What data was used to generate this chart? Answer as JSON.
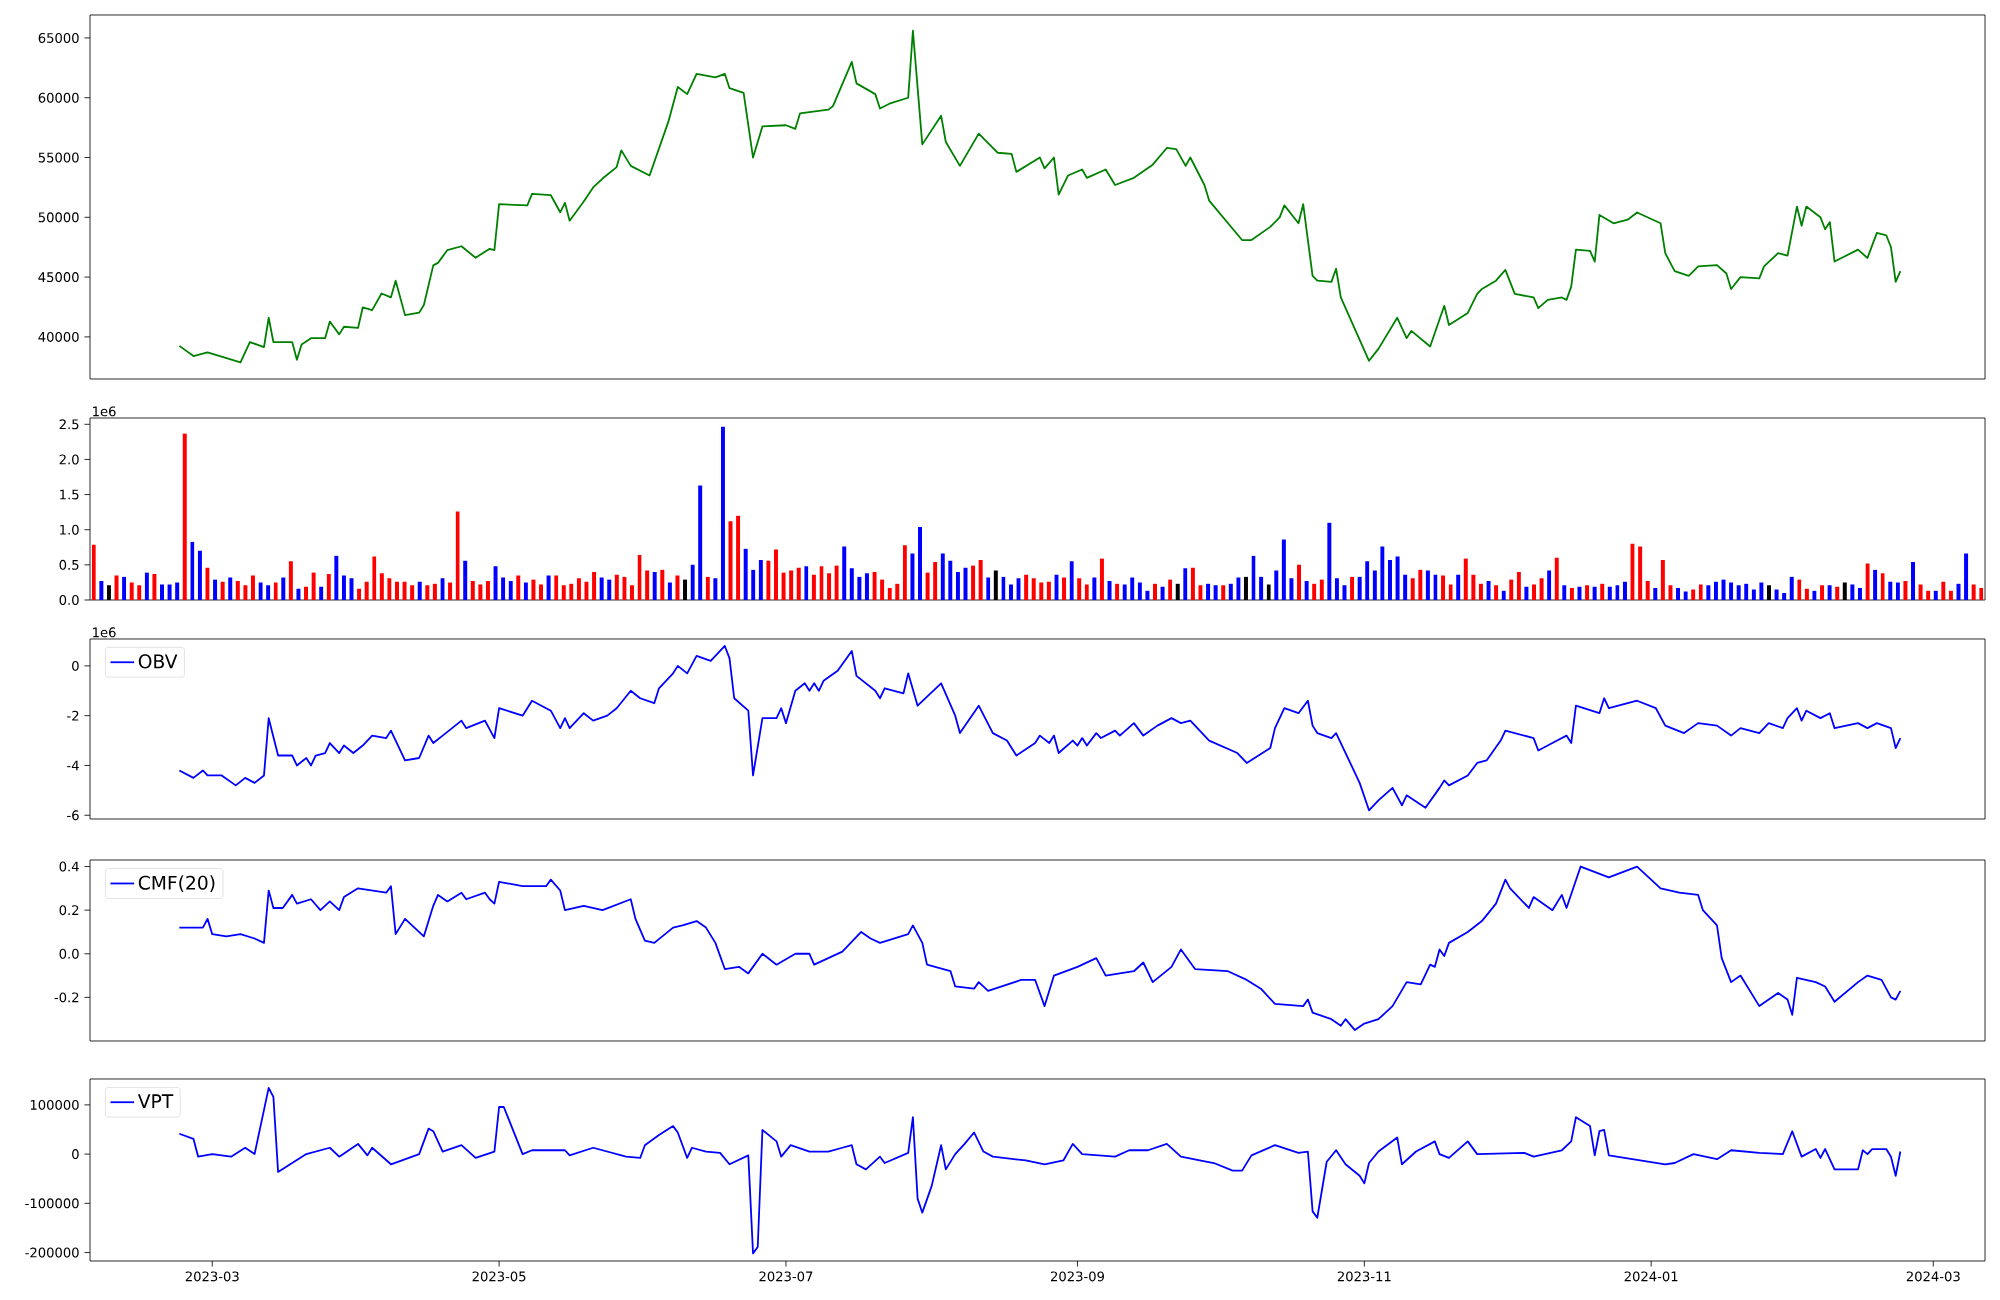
{
  "chart_data": [
    {
      "type": "line",
      "xlim": [
        "2023-02-03",
        "2024-03-12"
      ],
      "ylim": [
        36480,
        66920
      ],
      "yticks": [
        40000,
        45000,
        50000,
        55000,
        60000,
        65000
      ],
      "tick_labels": "y",
      "x": [
        "2023-02-22",
        "2023-02-25",
        "2023-02-28",
        "2023-03-07",
        "2023-03-09",
        "2023-03-12",
        "2023-03-13",
        "2023-03-14",
        "2023-03-18",
        "2023-03-19",
        "2023-03-20",
        "2023-03-22",
        "2023-03-25",
        "2023-03-26",
        "2023-03-28",
        "2023-03-29",
        "2023-04-01",
        "2023-04-02",
        "2023-04-04",
        "2023-04-06",
        "2023-04-08",
        "2023-04-09",
        "2023-04-11",
        "2023-04-14",
        "2023-04-15",
        "2023-04-17",
        "2023-04-18",
        "2023-04-20",
        "2023-04-23",
        "2023-04-26",
        "2023-04-29",
        "2023-04-30",
        "2023-05-01",
        "2023-05-07",
        "2023-05-08",
        "2023-05-12",
        "2023-05-14",
        "2023-05-15",
        "2023-05-16",
        "2023-05-19",
        "2023-05-21",
        "2023-05-23",
        "2023-05-26",
        "2023-05-27",
        "2023-05-29",
        "2023-06-02",
        "2023-06-06",
        "2023-06-08",
        "2023-06-10",
        "2023-06-12",
        "2023-06-16",
        "2023-06-18",
        "2023-06-19",
        "2023-06-22",
        "2023-06-24",
        "2023-06-26",
        "2023-07-01",
        "2023-07-03",
        "2023-07-04",
        "2023-07-10",
        "2023-07-11",
        "2023-07-15",
        "2023-07-16",
        "2023-07-20",
        "2023-07-21",
        "2023-07-23",
        "2023-07-27",
        "2023-07-28",
        "2023-07-30",
        "2023-08-03",
        "2023-08-04",
        "2023-08-07",
        "2023-08-11",
        "2023-08-15",
        "2023-08-18",
        "2023-08-19",
        "2023-08-24",
        "2023-08-25",
        "2023-08-27",
        "2023-08-28",
        "2023-08-30",
        "2023-09-02",
        "2023-09-03",
        "2023-09-07",
        "2023-09-09",
        "2023-09-13",
        "2023-09-17",
        "2023-09-20",
        "2023-09-22",
        "2023-09-24",
        "2023-09-25",
        "2023-09-28",
        "2023-09-29",
        "2023-10-06",
        "2023-10-08",
        "2023-10-12",
        "2023-10-14",
        "2023-10-15",
        "2023-10-18",
        "2023-10-19",
        "2023-10-21",
        "2023-10-22",
        "2023-10-25",
        "2023-10-26",
        "2023-10-27",
        "2023-11-02",
        "2023-11-04",
        "2023-11-08",
        "2023-11-10",
        "2023-11-11",
        "2023-11-15",
        "2023-11-18",
        "2023-11-19",
        "2023-11-23",
        "2023-11-25",
        "2023-11-26",
        "2023-11-29",
        "2023-12-01",
        "2023-12-03",
        "2023-12-07",
        "2023-12-08",
        "2023-12-10",
        "2023-12-13",
        "2023-12-14",
        "2023-12-15",
        "2023-12-16",
        "2023-12-19",
        "2023-12-20",
        "2023-12-21",
        "2023-12-24",
        "2023-12-27",
        "2023-12-29",
        "2024-01-03",
        "2024-01-04",
        "2024-01-06",
        "2024-01-09",
        "2024-01-11",
        "2024-01-15",
        "2024-01-17",
        "2024-01-18",
        "2024-01-20",
        "2024-01-24",
        "2024-01-25",
        "2024-01-28",
        "2024-01-30",
        "2024-02-01",
        "2024-02-02",
        "2024-02-03",
        "2024-02-06",
        "2024-02-07",
        "2024-02-08",
        "2024-02-09",
        "2024-02-14",
        "2024-02-16",
        "2024-02-18",
        "2024-02-20",
        "2024-02-21",
        "2024-02-22",
        "2024-02-23"
      ],
      "series": [
        {
          "color": "#008000",
          "values": [
            39250,
            38400,
            38700,
            37860,
            39570,
            39150,
            41600,
            39570,
            39570,
            38080,
            39360,
            39890,
            39890,
            41280,
            40210,
            40850,
            40750,
            42460,
            42240,
            43630,
            43310,
            44700,
            41820,
            42030,
            42670,
            45980,
            46190,
            47260,
            47580,
            46620,
            47370,
            47260,
            51100,
            51000,
            51960,
            51850,
            50420,
            51210,
            49720,
            51320,
            52500,
            53240,
            54200,
            55600,
            54300,
            53500,
            58000,
            60900,
            60300,
            62000,
            61700,
            62000,
            60800,
            60400,
            55000,
            57600,
            57700,
            57400,
            58700,
            59000,
            59300,
            63000,
            61200,
            60300,
            59100,
            59500,
            60000,
            65600,
            56100,
            58500,
            56300,
            54300,
            57000,
            55400,
            55300,
            53800,
            55000,
            54100,
            55000,
            51900,
            53500,
            54000,
            53300,
            54000,
            52700,
            53300,
            54400,
            55800,
            55700,
            54300,
            55000,
            52700,
            51400,
            48100,
            48100,
            49200,
            50000,
            51000,
            49500,
            51100,
            45100,
            44700,
            44600,
            45700,
            43300,
            38000,
            39000,
            41600,
            39900,
            40500,
            39200,
            42600,
            41000,
            42000,
            43600,
            44000,
            44700,
            45600,
            43600,
            43300,
            42400,
            43100,
            43300,
            43100,
            44200,
            47300,
            47200,
            46300,
            50200,
            49500,
            49800,
            50400,
            49500,
            47000,
            45500,
            45100,
            45900,
            46000,
            45300,
            44000,
            45000,
            44900,
            45900,
            47000,
            46800,
            50900,
            49300,
            50900,
            50000,
            49000,
            49600,
            46300,
            47300,
            46600,
            48700,
            48500,
            47500,
            44600,
            45500
          ]
        }
      ]
    },
    {
      "type": "bar",
      "ylim": [
        0,
        2.59
      ],
      "tick_labels": "y",
      "annotations": [
        "1e6"
      ],
      "yticks": [
        {
          "value": 0,
          "label": "0.0"
        },
        {
          "value": 0.5,
          "label": "0.5"
        },
        {
          "value": 1,
          "label": "1.0"
        },
        {
          "value": 1.5,
          "label": "1.5"
        },
        {
          "value": 2,
          "label": "2.0"
        },
        {
          "value": 2.5,
          "label": "2.5"
        }
      ],
      "categories": [
        null,
        null,
        null,
        null,
        null,
        null,
        null,
        null,
        null,
        null,
        null,
        null,
        null,
        null,
        null,
        null,
        null,
        null,
        null,
        null,
        null,
        null,
        null,
        null,
        null,
        null,
        null,
        null,
        null,
        null,
        null,
        null,
        null,
        null,
        null,
        null,
        null,
        null,
        null,
        null,
        null,
        null,
        null,
        null,
        null,
        null,
        null,
        null,
        null,
        null,
        null,
        null,
        null,
        null,
        null,
        null,
        null,
        null,
        null,
        null,
        null,
        null,
        null,
        null,
        null,
        null,
        null,
        null,
        null,
        null,
        null,
        null,
        null,
        null,
        null,
        null,
        null,
        null,
        null,
        null,
        null,
        null,
        null,
        null,
        null,
        null,
        null,
        null,
        null,
        null,
        null,
        null,
        null,
        null,
        null,
        null,
        null,
        null,
        null,
        null,
        null,
        null,
        null,
        null,
        null,
        null,
        null,
        null,
        null,
        null,
        null,
        null,
        null,
        null,
        null,
        null,
        null,
        null,
        null,
        null,
        null,
        null,
        null,
        null,
        null,
        null,
        null,
        null,
        null,
        null,
        null,
        null,
        null,
        null,
        null,
        null,
        null,
        null,
        null,
        null,
        null,
        null,
        null,
        null,
        null,
        null,
        null,
        null,
        null,
        null,
        null,
        null,
        null,
        null,
        null,
        null,
        null,
        null,
        null,
        null,
        null,
        null,
        null,
        null,
        null,
        null,
        null,
        null,
        null,
        null,
        null,
        null,
        null,
        null,
        null,
        null,
        null,
        null,
        null,
        null,
        null,
        null,
        null,
        null,
        null,
        null,
        null,
        null,
        null,
        null,
        null,
        null,
        null,
        null,
        null,
        null,
        null,
        null,
        null,
        null,
        null,
        null,
        null,
        null,
        null,
        null,
        null,
        null,
        null,
        null,
        null,
        null,
        null,
        null,
        null,
        null,
        null,
        null,
        null,
        null,
        null,
        null,
        null,
        null,
        null,
        null,
        null,
        null,
        null,
        null,
        null,
        null,
        null,
        null,
        null,
        null,
        null,
        null,
        null,
        null,
        null,
        null,
        null,
        null,
        null,
        null,
        null,
        null,
        null,
        null
      ],
      "values": [
        0.79,
        0.27,
        0.21,
        0.35,
        0.33,
        0.25,
        0.21,
        0.39,
        0.37,
        0.22,
        0.22,
        0.25,
        2.37,
        0.83,
        0.7,
        0.46,
        0.29,
        0.26,
        0.32,
        0.27,
        0.21,
        0.35,
        0.25,
        0.21,
        0.25,
        0.32,
        0.55,
        0.16,
        0.19,
        0.39,
        0.19,
        0.37,
        0.63,
        0.35,
        0.31,
        0.16,
        0.26,
        0.62,
        0.38,
        0.31,
        0.26,
        0.26,
        0.21,
        0.26,
        0.21,
        0.23,
        0.31,
        0.25,
        1.26,
        0.56,
        0.27,
        0.22,
        0.27,
        0.48,
        0.32,
        0.27,
        0.35,
        0.25,
        0.29,
        0.22,
        0.35,
        0.35,
        0.21,
        0.23,
        0.31,
        0.26,
        0.4,
        0.32,
        0.29,
        0.36,
        0.33,
        0.21,
        0.64,
        0.42,
        0.4,
        0.43,
        0.25,
        0.35,
        0.29,
        0.5,
        1.63,
        0.33,
        0.31,
        2.47,
        1.12,
        1.2,
        0.73,
        0.43,
        0.57,
        0.56,
        0.72,
        0.39,
        0.42,
        0.46,
        0.48,
        0.36,
        0.48,
        0.38,
        0.49,
        0.76,
        0.45,
        0.33,
        0.38,
        0.4,
        0.29,
        0.17,
        0.23,
        0.78,
        0.66,
        1.04,
        0.39,
        0.54,
        0.66,
        0.56,
        0.4,
        0.46,
        0.49,
        0.57,
        0.32,
        0.42,
        0.33,
        0.22,
        0.31,
        0.36,
        0.31,
        0.25,
        0.26,
        0.36,
        0.32,
        0.55,
        0.31,
        0.22,
        0.32,
        0.59,
        0.27,
        0.23,
        0.22,
        0.32,
        0.25,
        0.13,
        0.23,
        0.19,
        0.29,
        0.23,
        0.45,
        0.46,
        0.21,
        0.23,
        0.21,
        0.21,
        0.23,
        0.32,
        0.33,
        0.63,
        0.33,
        0.22,
        0.42,
        0.86,
        0.31,
        0.5,
        0.27,
        0.23,
        0.29,
        1.1,
        0.31,
        0.21,
        0.33,
        0.33,
        0.55,
        0.42,
        0.76,
        0.57,
        0.62,
        0.36,
        0.31,
        0.43,
        0.42,
        0.36,
        0.35,
        0.22,
        0.36,
        0.59,
        0.36,
        0.23,
        0.27,
        0.21,
        0.13,
        0.29,
        0.4,
        0.19,
        0.22,
        0.31,
        0.42,
        0.6,
        0.21,
        0.17,
        0.19,
        0.21,
        0.19,
        0.23,
        0.19,
        0.21,
        0.26,
        0.8,
        0.76,
        0.27,
        0.17,
        0.57,
        0.21,
        0.17,
        0.12,
        0.15,
        0.22,
        0.21,
        0.26,
        0.29,
        0.25,
        0.21,
        0.23,
        0.15,
        0.25,
        0.21,
        0.15,
        0.1,
        0.33,
        0.29,
        0.16,
        0.13,
        0.21,
        0.21,
        0.19,
        0.25,
        0.22,
        0.17,
        0.52,
        0.43,
        0.38,
        0.26,
        0.25,
        0.27,
        0.54,
        0.22,
        0.13,
        0.13,
        0.26,
        0.13,
        0.23,
        0.66,
        0.22,
        0.17
      ],
      "colors": [
        "#ff0000",
        "#0000ff",
        "#000000",
        "#ff0000",
        "#0000ff",
        "#ff0000",
        "#ff0000",
        "#0000ff",
        "#ff0000",
        "#0000ff",
        "#0000ff",
        "#0000ff",
        "#ff0000",
        "#0000ff",
        "#0000ff",
        "#ff0000",
        "#0000ff",
        "#ff0000",
        "#0000ff",
        "#ff0000",
        "#ff0000",
        "#ff0000",
        "#0000ff",
        "#0000ff",
        "#ff0000",
        "#0000ff",
        "#ff0000",
        "#0000ff",
        "#ff0000",
        "#ff0000",
        "#0000ff",
        "#ff0000",
        "#0000ff",
        "#0000ff",
        "#0000ff",
        "#ff0000",
        "#ff0000",
        "#ff0000",
        "#ff0000",
        "#ff0000",
        "#ff0000",
        "#ff0000",
        "#ff0000",
        "#0000ff",
        "#ff0000",
        "#ff0000",
        "#0000ff",
        "#ff0000",
        "#ff0000",
        "#0000ff",
        "#ff0000",
        "#ff0000",
        "#ff0000",
        "#0000ff",
        "#0000ff",
        "#0000ff",
        "#ff0000",
        "#0000ff",
        "#ff0000",
        "#ff0000",
        "#0000ff",
        "#ff0000",
        "#ff0000",
        "#ff0000",
        "#ff0000",
        "#ff0000",
        "#ff0000",
        "#0000ff",
        "#0000ff",
        "#ff0000",
        "#ff0000",
        "#ff0000",
        "#ff0000",
        "#ff0000",
        "#0000ff",
        "#ff0000",
        "#0000ff",
        "#ff0000",
        "#000000",
        "#0000ff",
        "#0000ff",
        "#ff0000",
        "#0000ff",
        "#0000ff",
        "#ff0000",
        "#ff0000",
        "#0000ff",
        "#0000ff",
        "#0000ff",
        "#ff0000",
        "#ff0000",
        "#ff0000",
        "#ff0000",
        "#ff0000",
        "#0000ff",
        "#ff0000",
        "#ff0000",
        "#ff0000",
        "#ff0000",
        "#0000ff",
        "#0000ff",
        "#0000ff",
        "#0000ff",
        "#ff0000",
        "#ff0000",
        "#ff0000",
        "#ff0000",
        "#ff0000",
        "#0000ff",
        "#0000ff",
        "#ff0000",
        "#ff0000",
        "#0000ff",
        "#0000ff",
        "#0000ff",
        "#0000ff",
        "#ff0000",
        "#ff0000",
        "#0000ff",
        "#000000",
        "#0000ff",
        "#0000ff",
        "#0000ff",
        "#ff0000",
        "#ff0000",
        "#ff0000",
        "#ff0000",
        "#0000ff",
        "#ff0000",
        "#0000ff",
        "#ff0000",
        "#ff0000",
        "#0000ff",
        "#ff0000",
        "#0000ff",
        "#ff0000",
        "#0000ff",
        "#0000ff",
        "#0000ff",
        "#0000ff",
        "#ff0000",
        "#0000ff",
        "#ff0000",
        "#000000",
        "#0000ff",
        "#ff0000",
        "#ff0000",
        "#0000ff",
        "#0000ff",
        "#ff0000",
        "#0000ff",
        "#0000ff",
        "#000000",
        "#0000ff",
        "#0000ff",
        "#000000",
        "#0000ff",
        "#0000ff",
        "#0000ff",
        "#ff0000",
        "#0000ff",
        "#ff0000",
        "#ff0000",
        "#0000ff",
        "#0000ff",
        "#0000ff",
        "#ff0000",
        "#0000ff",
        "#0000ff",
        "#0000ff",
        "#0000ff",
        "#0000ff",
        "#0000ff",
        "#0000ff",
        "#ff0000",
        "#ff0000",
        "#0000ff",
        "#0000ff",
        "#ff0000",
        "#ff0000",
        "#0000ff",
        "#ff0000",
        "#ff0000",
        "#ff0000",
        "#0000ff",
        "#ff0000",
        "#0000ff",
        "#ff0000",
        "#ff0000",
        "#0000ff",
        "#ff0000",
        "#ff0000",
        "#0000ff",
        "#ff0000",
        "#0000ff",
        "#ff0000",
        "#0000ff",
        "#ff0000",
        "#0000ff",
        "#ff0000",
        "#0000ff",
        "#0000ff",
        "#0000ff",
        "#ff0000",
        "#ff0000",
        "#ff0000",
        "#0000ff",
        "#ff0000",
        "#ff0000",
        "#0000ff",
        "#0000ff",
        "#ff0000",
        "#ff0000",
        "#0000ff",
        "#0000ff",
        "#0000ff",
        "#0000ff",
        "#0000ff",
        "#0000ff",
        "#0000ff",
        "#0000ff",
        "#000000",
        "#0000ff",
        "#0000ff",
        "#0000ff",
        "#ff0000",
        "#ff0000",
        "#0000ff",
        "#ff0000",
        "#0000ff",
        "#ff0000",
        "#000000",
        "#0000ff",
        "#0000ff",
        "#ff0000",
        "#0000ff",
        "#ff0000",
        "#0000ff",
        "#0000ff",
        "#ff0000",
        "#0000ff",
        "#ff0000",
        "#ff0000",
        "#0000ff",
        "#ff0000",
        "#ff0000",
        "#0000ff",
        "#0000ff",
        "#ff0000",
        "#ff0000"
      ]
    },
    {
      "type": "line",
      "xlim": [
        "2023-02-03",
        "2024-03-12"
      ],
      "ylim": [
        -6.15,
        1.08
      ],
      "yticks": [
        -6,
        -4,
        -2,
        0
      ],
      "tick_labels": "y",
      "annotations": [
        "1e6"
      ],
      "legend": "top left",
      "x": [
        "2023-02-22",
        "2023-02-25",
        "2023-02-27",
        "2023-02-28",
        "2023-03-03",
        "2023-03-06",
        "2023-03-08",
        "2023-03-10",
        "2023-03-12",
        "2023-03-13",
        "2023-03-15",
        "2023-03-18",
        "2023-03-19",
        "2023-03-21",
        "2023-03-22",
        "2023-03-23",
        "2023-03-25",
        "2023-03-26",
        "2023-03-28",
        "2023-03-29",
        "2023-03-31",
        "2023-04-02",
        "2023-04-04",
        "2023-04-07",
        "2023-04-08",
        "2023-04-11",
        "2023-04-14",
        "2023-04-16",
        "2023-04-17",
        "2023-04-19",
        "2023-04-23",
        "2023-04-24",
        "2023-04-28",
        "2023-04-30",
        "2023-05-01",
        "2023-05-06",
        "2023-05-08",
        "2023-05-12",
        "2023-05-14",
        "2023-05-15",
        "2023-05-16",
        "2023-05-19",
        "2023-05-21",
        "2023-05-24",
        "2023-05-26",
        "2023-05-29",
        "2023-05-31",
        "2023-06-03",
        "2023-06-04",
        "2023-06-07",
        "2023-06-08",
        "2023-06-10",
        "2023-06-12",
        "2023-06-15",
        "2023-06-18",
        "2023-06-19",
        "2023-06-20",
        "2023-06-23",
        "2023-06-24",
        "2023-06-26",
        "2023-06-29",
        "2023-06-30",
        "2023-07-01",
        "2023-07-03",
        "2023-07-05",
        "2023-07-06",
        "2023-07-07",
        "2023-07-08",
        "2023-07-09",
        "2023-07-12",
        "2023-07-15",
        "2023-07-16",
        "2023-07-20",
        "2023-07-21",
        "2023-07-22",
        "2023-07-26",
        "2023-07-27",
        "2023-07-29",
        "2023-08-03",
        "2023-08-06",
        "2023-08-07",
        "2023-08-11",
        "2023-08-14",
        "2023-08-17",
        "2023-08-19",
        "2023-08-23",
        "2023-08-24",
        "2023-08-26",
        "2023-08-27",
        "2023-08-28",
        "2023-08-31",
        "2023-09-01",
        "2023-09-02",
        "2023-09-03",
        "2023-09-05",
        "2023-09-06",
        "2023-09-09",
        "2023-09-10",
        "2023-09-13",
        "2023-09-15",
        "2023-09-18",
        "2023-09-21",
        "2023-09-23",
        "2023-09-25",
        "2023-09-29",
        "2023-10-05",
        "2023-10-07",
        "2023-10-12",
        "2023-10-13",
        "2023-10-15",
        "2023-10-18",
        "2023-10-20",
        "2023-10-21",
        "2023-10-22",
        "2023-10-25",
        "2023-10-26",
        "2023-10-29",
        "2023-10-31",
        "2023-11-02",
        "2023-11-04",
        "2023-11-07",
        "2023-11-09",
        "2023-11-10",
        "2023-11-14",
        "2023-11-17",
        "2023-11-18",
        "2023-11-19",
        "2023-11-23",
        "2023-11-25",
        "2023-11-27",
        "2023-11-30",
        "2023-12-01",
        "2023-12-07",
        "2023-12-08",
        "2023-12-12",
        "2023-12-14",
        "2023-12-15",
        "2023-12-16",
        "2023-12-21",
        "2023-12-22",
        "2023-12-23",
        "2023-12-29",
        "2024-01-02",
        "2024-01-04",
        "2024-01-08",
        "2024-01-11",
        "2024-01-15",
        "2024-01-18",
        "2024-01-20",
        "2024-01-24",
        "2024-01-26",
        "2024-01-29",
        "2024-01-30",
        "2024-02-01",
        "2024-02-02",
        "2024-02-03",
        "2024-02-06",
        "2024-02-08",
        "2024-02-09",
        "2024-02-14",
        "2024-02-16",
        "2024-02-18",
        "2024-02-21",
        "2024-02-22",
        "2024-02-23"
      ],
      "series": [
        {
          "name": "OBV",
          "color": "#0000ff",
          "values": [
            -4.2,
            -4.5,
            -4.2,
            -4.4,
            -4.4,
            -4.8,
            -4.5,
            -4.7,
            -4.4,
            -2.1,
            -3.6,
            -3.6,
            -4.0,
            -3.7,
            -4.0,
            -3.6,
            -3.5,
            -3.1,
            -3.5,
            -3.2,
            -3.5,
            -3.2,
            -2.8,
            -2.9,
            -2.6,
            -3.8,
            -3.7,
            -2.8,
            -3.1,
            -2.8,
            -2.2,
            -2.5,
            -2.2,
            -2.9,
            -1.7,
            -2.0,
            -1.4,
            -1.8,
            -2.5,
            -2.1,
            -2.5,
            -1.9,
            -2.2,
            -2.0,
            -1.7,
            -1.0,
            -1.3,
            -1.5,
            -0.9,
            -0.3,
            0.0,
            -0.3,
            0.4,
            0.2,
            0.8,
            0.3,
            -1.3,
            -1.8,
            -4.4,
            -2.1,
            -2.1,
            -1.7,
            -2.3,
            -1.0,
            -0.7,
            -1.0,
            -0.7,
            -1.0,
            -0.6,
            -0.2,
            0.6,
            -0.4,
            -1.0,
            -1.3,
            -0.9,
            -1.1,
            -0.3,
            -1.6,
            -0.7,
            -2.0,
            -2.7,
            -1.6,
            -2.7,
            -3.0,
            -3.6,
            -3.1,
            -2.8,
            -3.1,
            -2.8,
            -3.5,
            -3.0,
            -3.2,
            -2.9,
            -3.2,
            -2.7,
            -2.9,
            -2.6,
            -2.8,
            -2.3,
            -2.8,
            -2.4,
            -2.1,
            -2.3,
            -2.2,
            -3.0,
            -3.5,
            -3.9,
            -3.3,
            -2.5,
            -1.7,
            -1.9,
            -1.4,
            -2.4,
            -2.7,
            -2.9,
            -2.7,
            -3.9,
            -4.7,
            -5.8,
            -5.4,
            -4.9,
            -5.6,
            -5.2,
            -5.7,
            -4.9,
            -4.6,
            -4.8,
            -4.4,
            -3.9,
            -3.8,
            -3.0,
            -2.6,
            -2.9,
            -3.4,
            -3.0,
            -2.8,
            -3.1,
            -1.6,
            -1.9,
            -1.3,
            -1.7,
            -1.4,
            -1.7,
            -2.4,
            -2.7,
            -2.3,
            -2.4,
            -2.8,
            -2.5,
            -2.7,
            -2.3,
            -2.5,
            -2.1,
            -1.7,
            -2.2,
            -1.8,
            -2.1,
            -1.9,
            -2.5,
            -2.3,
            -2.5,
            -2.3,
            -2.5,
            -3.3,
            -2.9
          ]
        }
      ]
    },
    {
      "type": "line",
      "xlim": [
        "2023-02-03",
        "2024-03-12"
      ],
      "ylim": [
        -0.4,
        0.43
      ],
      "yticks": [
        -0.2,
        {
          "value": 0,
          "label": "0.0"
        },
        0.2,
        0.4
      ],
      "tick_labels": "y",
      "legend": "top left",
      "x": [
        "2023-02-22",
        "2023-02-27",
        "2023-02-28",
        "2023-03-01",
        "2023-03-04",
        "2023-03-07",
        "2023-03-10",
        "2023-03-12",
        "2023-03-13",
        "2023-03-14",
        "2023-03-16",
        "2023-03-18",
        "2023-03-19",
        "2023-03-22",
        "2023-03-24",
        "2023-03-26",
        "2023-03-28",
        "2023-03-29",
        "2023-04-01",
        "2023-04-07",
        "2023-04-08",
        "2023-04-09",
        "2023-04-11",
        "2023-04-15",
        "2023-04-17",
        "2023-04-18",
        "2023-04-20",
        "2023-04-23",
        "2023-04-24",
        "2023-04-28",
        "2023-04-29",
        "2023-04-30",
        "2023-05-01",
        "2023-05-06",
        "2023-05-11",
        "2023-05-12",
        "2023-05-14",
        "2023-05-15",
        "2023-05-19",
        "2023-05-23",
        "2023-05-29",
        "2023-05-30",
        "2023-06-01",
        "2023-06-03",
        "2023-06-07",
        "2023-06-09",
        "2023-06-12",
        "2023-06-14",
        "2023-06-16",
        "2023-06-18",
        "2023-06-21",
        "2023-06-23",
        "2023-06-26",
        "2023-06-29",
        "2023-07-03",
        "2023-07-06",
        "2023-07-07",
        "2023-07-13",
        "2023-07-17",
        "2023-07-19",
        "2023-07-21",
        "2023-07-27",
        "2023-07-28",
        "2023-07-30",
        "2023-07-31",
        "2023-08-05",
        "2023-08-06",
        "2023-08-10",
        "2023-08-11",
        "2023-08-13",
        "2023-08-20",
        "2023-08-23",
        "2023-08-25",
        "2023-08-27",
        "2023-09-01",
        "2023-09-05",
        "2023-09-07",
        "2023-09-13",
        "2023-09-15",
        "2023-09-17",
        "2023-09-21",
        "2023-09-23",
        "2023-09-26",
        "2023-10-03",
        "2023-10-07",
        "2023-10-10",
        "2023-10-13",
        "2023-10-19",
        "2023-10-20",
        "2023-10-21",
        "2023-10-25",
        "2023-10-27",
        "2023-10-28",
        "2023-10-30",
        "2023-11-01",
        "2023-11-04",
        "2023-11-07",
        "2023-11-10",
        "2023-11-13",
        "2023-11-15",
        "2023-11-16",
        "2023-11-17",
        "2023-11-18",
        "2023-11-19",
        "2023-11-23",
        "2023-11-26",
        "2023-11-29",
        "2023-12-01",
        "2023-12-02",
        "2023-12-06",
        "2023-12-07",
        "2023-12-11",
        "2023-12-13",
        "2023-12-14",
        "2023-12-17",
        "2023-12-23",
        "2023-12-29",
        "2024-01-03",
        "2024-01-07",
        "2024-01-11",
        "2024-01-12",
        "2024-01-15",
        "2024-01-16",
        "2024-01-18",
        "2024-01-20",
        "2024-01-24",
        "2024-01-28",
        "2024-01-30",
        "2024-01-31",
        "2024-02-01",
        "2024-02-05",
        "2024-02-07",
        "2024-02-09",
        "2024-02-14",
        "2024-02-16",
        "2024-02-19",
        "2024-02-21",
        "2024-02-22",
        "2024-02-23"
      ],
      "series": [
        {
          "name": "CMF(20)",
          "color": "#0000ff",
          "values": [
            0.12,
            0.12,
            0.16,
            0.09,
            0.08,
            0.09,
            0.07,
            0.05,
            0.29,
            0.21,
            0.21,
            0.27,
            0.23,
            0.25,
            0.2,
            0.24,
            0.2,
            0.26,
            0.3,
            0.28,
            0.31,
            0.09,
            0.16,
            0.08,
            0.22,
            0.27,
            0.24,
            0.28,
            0.25,
            0.28,
            0.25,
            0.23,
            0.33,
            0.31,
            0.31,
            0.34,
            0.29,
            0.2,
            0.22,
            0.2,
            0.25,
            0.16,
            0.06,
            0.05,
            0.12,
            0.13,
            0.15,
            0.12,
            0.05,
            -0.07,
            -0.06,
            -0.09,
            0.0,
            -0.05,
            0.0,
            0.0,
            -0.05,
            0.01,
            0.1,
            0.07,
            0.05,
            0.09,
            0.13,
            0.05,
            -0.05,
            -0.08,
            -0.15,
            -0.16,
            -0.13,
            -0.17,
            -0.12,
            -0.12,
            -0.24,
            -0.1,
            -0.06,
            -0.02,
            -0.1,
            -0.08,
            -0.04,
            -0.13,
            -0.06,
            0.02,
            -0.07,
            -0.08,
            -0.12,
            -0.16,
            -0.23,
            -0.24,
            -0.21,
            -0.27,
            -0.3,
            -0.33,
            -0.3,
            -0.35,
            -0.32,
            -0.3,
            -0.24,
            -0.13,
            -0.14,
            -0.05,
            -0.06,
            0.02,
            -0.01,
            0.05,
            0.1,
            0.15,
            0.23,
            0.34,
            0.3,
            0.21,
            0.26,
            0.2,
            0.27,
            0.21,
            0.4,
            0.35,
            0.4,
            0.3,
            0.28,
            0.27,
            0.2,
            0.13,
            -0.02,
            -0.13,
            -0.1,
            -0.24,
            -0.18,
            -0.21,
            -0.28,
            -0.11,
            -0.13,
            -0.15,
            -0.22,
            -0.13,
            -0.1,
            -0.12,
            -0.2,
            -0.21,
            -0.17
          ]
        }
      ]
    },
    {
      "type": "line",
      "xlim": [
        "2023-02-03",
        "2024-03-12"
      ],
      "ylim": [
        -217200,
        152600
      ],
      "yticks": [
        -200000,
        -100000,
        0,
        100000
      ],
      "legend": "top left",
      "xticks": [
        "2023-03",
        "2023-05",
        "2023-07",
        "2023-09",
        "2023-11",
        "2024-01",
        "2024-03"
      ],
      "x": [
        "2023-02-22",
        "2023-02-25",
        "2023-02-26",
        "2023-03-01",
        "2023-03-05",
        "2023-03-08",
        "2023-03-10",
        "2023-03-13",
        "2023-03-14",
        "2023-03-15",
        "2023-03-21",
        "2023-03-26",
        "2023-03-28",
        "2023-04-01",
        "2023-04-03",
        "2023-04-04",
        "2023-04-08",
        "2023-04-14",
        "2023-04-16",
        "2023-04-17",
        "2023-04-19",
        "2023-04-23",
        "2023-04-26",
        "2023-04-30",
        "2023-05-01",
        "2023-05-02",
        "2023-05-06",
        "2023-05-08",
        "2023-05-15",
        "2023-05-16",
        "2023-05-21",
        "2023-05-28",
        "2023-05-31",
        "2023-06-01",
        "2023-06-04",
        "2023-06-07",
        "2023-06-08",
        "2023-06-10",
        "2023-06-11",
        "2023-06-14",
        "2023-06-17",
        "2023-06-19",
        "2023-06-23",
        "2023-06-24",
        "2023-06-25",
        "2023-06-26",
        "2023-06-29",
        "2023-06-30",
        "2023-07-02",
        "2023-07-06",
        "2023-07-10",
        "2023-07-13",
        "2023-07-15",
        "2023-07-16",
        "2023-07-18",
        "2023-07-21",
        "2023-07-22",
        "2023-07-27",
        "2023-07-28",
        "2023-07-29",
        "2023-07-30",
        "2023-08-01",
        "2023-08-03",
        "2023-08-04",
        "2023-08-06",
        "2023-08-08",
        "2023-08-10",
        "2023-08-12",
        "2023-08-14",
        "2023-08-21",
        "2023-08-25",
        "2023-08-29",
        "2023-08-31",
        "2023-09-02",
        "2023-09-09",
        "2023-09-12",
        "2023-09-16",
        "2023-09-20",
        "2023-09-23",
        "2023-09-27",
        "2023-09-30",
        "2023-10-04",
        "2023-10-06",
        "2023-10-08",
        "2023-10-13",
        "2023-10-18",
        "2023-10-20",
        "2023-10-21",
        "2023-10-22",
        "2023-10-24",
        "2023-10-26",
        "2023-10-28",
        "2023-10-31",
        "2023-11-01",
        "2023-11-02",
        "2023-11-04",
        "2023-11-08",
        "2023-11-09",
        "2023-11-12",
        "2023-11-16",
        "2023-11-17",
        "2023-11-19",
        "2023-11-23",
        "2023-11-25",
        "2023-12-05",
        "2023-12-07",
        "2023-12-13",
        "2023-12-15",
        "2023-12-16",
        "2023-12-19",
        "2023-12-20",
        "2023-12-21",
        "2023-12-22",
        "2023-12-23",
        "2024-01-04",
        "2024-01-06",
        "2024-01-10",
        "2024-01-15",
        "2024-01-18",
        "2024-01-24",
        "2024-01-29",
        "2024-01-31",
        "2024-02-02",
        "2024-02-05",
        "2024-02-06",
        "2024-02-07",
        "2024-02-09",
        "2024-02-14",
        "2024-02-15",
        "2024-02-16",
        "2024-02-17",
        "2024-02-20",
        "2024-02-21",
        "2024-02-22",
        "2024-02-23"
      ],
      "series": [
        {
          "name": "VPT",
          "color": "#0000ff",
          "values": [
            41400,
            31000,
            -5200,
            0,
            -5200,
            12900,
            0,
            134500,
            116400,
            -36200,
            0,
            12900,
            -5200,
            20700,
            -2600,
            12900,
            -20700,
            0,
            51700,
            46500,
            5200,
            18100,
            -7800,
            5200,
            95700,
            95700,
            0,
            7800,
            7800,
            -2600,
            12900,
            -5200,
            -7800,
            18100,
            38800,
            56900,
            44000,
            -7800,
            12900,
            5200,
            2600,
            -20700,
            -2600,
            -201700,
            -188800,
            49100,
            25900,
            -5200,
            18100,
            5200,
            5200,
            12900,
            18100,
            -20700,
            -31000,
            -5200,
            -18100,
            2600,
            75000,
            -90500,
            -119000,
            -64600,
            18100,
            -31000,
            0,
            20700,
            44000,
            5200,
            -5200,
            -12900,
            -20700,
            -12900,
            20700,
            0,
            -5200,
            7800,
            7800,
            20700,
            -5200,
            -12900,
            -18100,
            -33600,
            -33600,
            -2600,
            18100,
            2600,
            5200,
            -116400,
            -129300,
            -15500,
            7800,
            -20700,
            -44000,
            -59500,
            -18100,
            5200,
            33600,
            -20700,
            5200,
            25900,
            0,
            -7800,
            25900,
            0,
            2600,
            -5200,
            7800,
            25900,
            75000,
            56900,
            -2600,
            46500,
            49100,
            -2600,
            -20700,
            -18100,
            0,
            -10300,
            7800,
            2600,
            0,
            46500,
            -5200,
            10300,
            -7800,
            10300,
            -31000,
            -31000,
            7800,
            0,
            10300,
            10300,
            -5200,
            -44000,
            5200
          ]
        }
      ]
    }
  ]
}
